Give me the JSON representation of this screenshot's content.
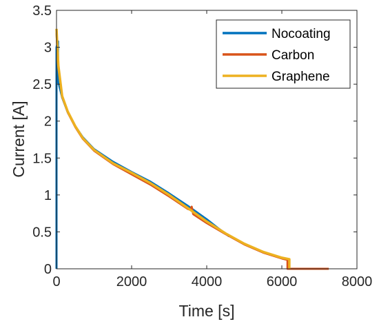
{
  "chart_data": {
    "type": "line",
    "xlabel": "Time [s]",
    "ylabel": "Current [A]",
    "xlim": [
      0,
      8000
    ],
    "ylim": [
      0,
      3.5
    ],
    "x_ticks": [
      "0",
      "2000",
      "4000",
      "6000",
      "8000"
    ],
    "y_ticks": [
      "0",
      "0.5",
      "1",
      "1.5",
      "2",
      "2.5",
      "3",
      "3.5"
    ],
    "grid": false,
    "legend_position": "top-right",
    "series": [
      {
        "name": "Nocoating",
        "color": "#0072BD",
        "points": [
          [
            0,
            0
          ],
          [
            0,
            3.0
          ],
          [
            40,
            3.08
          ],
          [
            40,
            2.55
          ],
          [
            150,
            2.32
          ],
          [
            300,
            2.12
          ],
          [
            500,
            1.93
          ],
          [
            700,
            1.78
          ],
          [
            1000,
            1.62
          ],
          [
            1500,
            1.45
          ],
          [
            2000,
            1.31
          ],
          [
            2500,
            1.18
          ],
          [
            3000,
            1.02
          ],
          [
            3500,
            0.85
          ],
          [
            4000,
            0.67
          ],
          [
            4300,
            0.55
          ],
          [
            4600,
            0.44
          ]
        ]
      },
      {
        "name": "Carbon",
        "color": "#D95319",
        "points": [
          [
            0,
            3.2
          ],
          [
            50,
            2.72
          ],
          [
            150,
            2.33
          ],
          [
            300,
            2.12
          ],
          [
            500,
            1.92
          ],
          [
            700,
            1.76
          ],
          [
            1000,
            1.6
          ],
          [
            1500,
            1.42
          ],
          [
            2000,
            1.28
          ],
          [
            2500,
            1.14
          ],
          [
            3000,
            0.98
          ],
          [
            3500,
            0.81
          ],
          [
            3560,
            0.8
          ],
          [
            3600,
            0.84
          ],
          [
            3640,
            0.74
          ],
          [
            4000,
            0.62
          ],
          [
            4500,
            0.47
          ],
          [
            5000,
            0.33
          ],
          [
            5500,
            0.22
          ],
          [
            6000,
            0.14
          ],
          [
            6150,
            0.12
          ],
          [
            6150,
            0
          ],
          [
            7250,
            0
          ]
        ]
      },
      {
        "name": "Graphene",
        "color": "#EDB120",
        "points": [
          [
            0,
            3.25
          ],
          [
            50,
            2.75
          ],
          [
            150,
            2.34
          ],
          [
            300,
            2.13
          ],
          [
            500,
            1.93
          ],
          [
            700,
            1.77
          ],
          [
            1000,
            1.61
          ],
          [
            1500,
            1.43
          ],
          [
            2000,
            1.3
          ],
          [
            2500,
            1.16
          ],
          [
            3000,
            1.0
          ],
          [
            3500,
            0.82
          ],
          [
            4000,
            0.64
          ],
          [
            4500,
            0.48
          ],
          [
            5000,
            0.34
          ],
          [
            5500,
            0.23
          ],
          [
            6000,
            0.15
          ],
          [
            6200,
            0.13
          ],
          [
            6200,
            0
          ]
        ]
      }
    ]
  }
}
